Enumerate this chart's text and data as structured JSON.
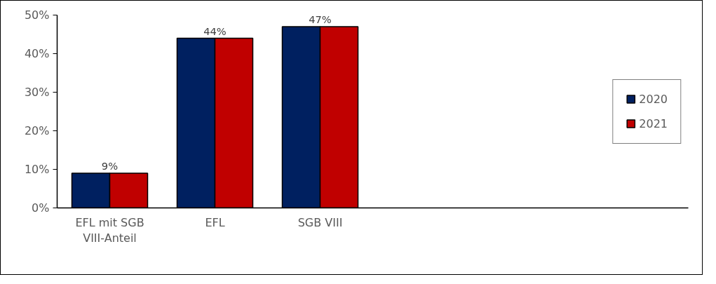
{
  "chart_data": {
    "type": "bar",
    "categories": [
      "EFL mit SGB VIII-Anteil",
      "EFL",
      "SGB VIII",
      null,
      null,
      null
    ],
    "series": [
      {
        "name": "2020",
        "color": "#002060",
        "values": [
          9,
          44,
          47,
          null,
          null,
          null
        ]
      },
      {
        "name": "2021",
        "color": "#c00000",
        "values": [
          9,
          44,
          47,
          null,
          null,
          null
        ]
      }
    ],
    "ylim": [
      0,
      50
    ],
    "yticks": [
      {
        "value": 0,
        "label": "0%"
      },
      {
        "value": 10,
        "label": "10%"
      },
      {
        "value": 20,
        "label": "20%"
      },
      {
        "value": 30,
        "label": "30%"
      },
      {
        "value": 40,
        "label": "40%"
      },
      {
        "value": 50,
        "label": "50%"
      }
    ],
    "annotations": [
      {
        "text": "9%",
        "x": "EFL mit SGB VIII-Anteil",
        "y": 9
      },
      {
        "text": "44%",
        "x": "EFL",
        "y": 44
      },
      {
        "text": "47%",
        "x": "SGB VIII",
        "y": 47
      }
    ],
    "grid": false,
    "legend": "right"
  }
}
